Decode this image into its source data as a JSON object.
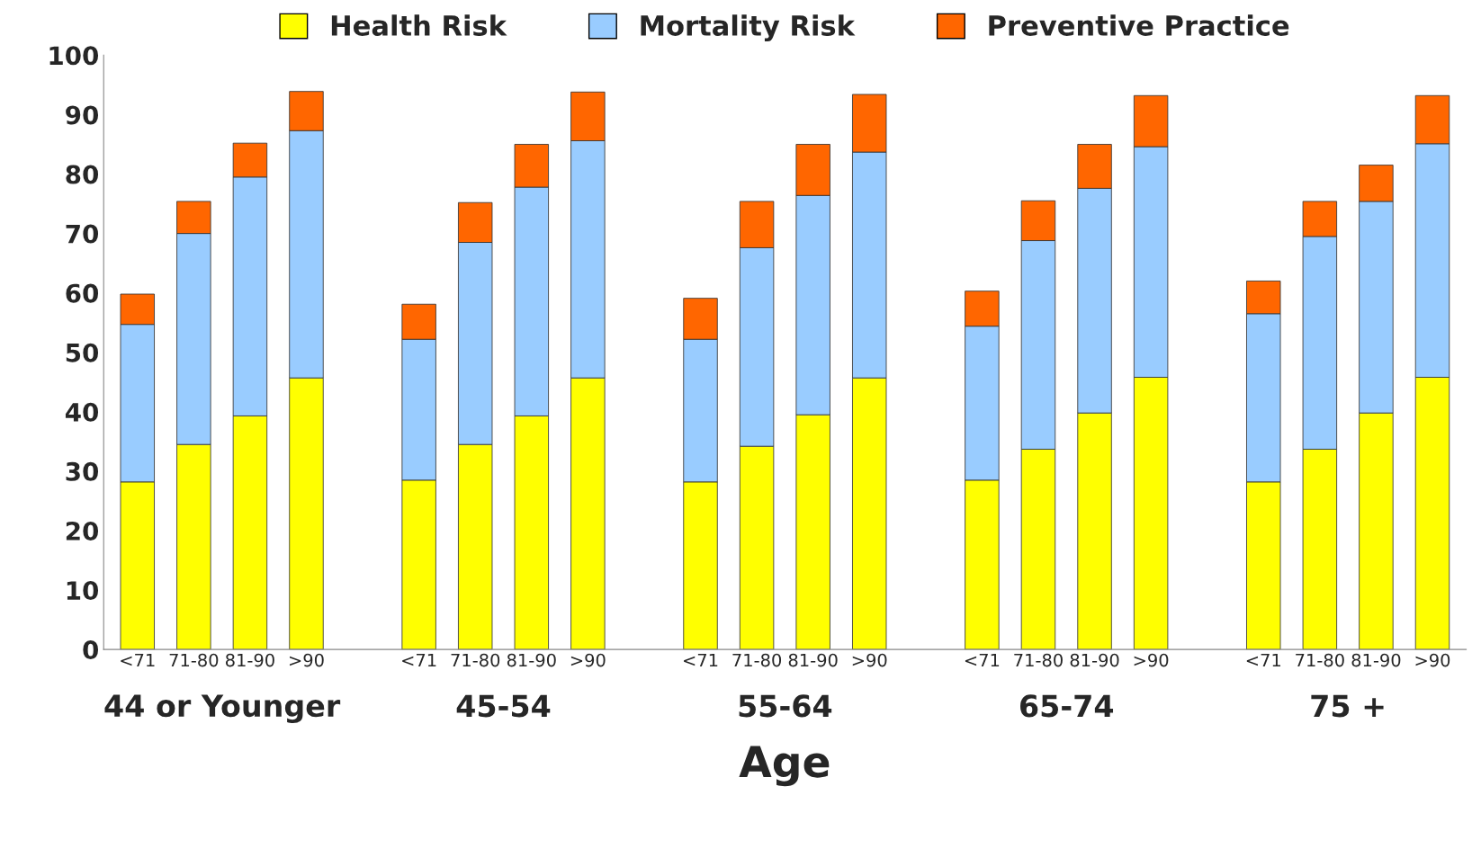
{
  "chart_data": {
    "type": "bar",
    "stacked": true,
    "xlabel": "Age",
    "categories": [
      "<71",
      "71-80",
      "81-90",
      ">90",
      null,
      "<71",
      "71-80",
      "81-90",
      ">90",
      null,
      "<71",
      "71-80",
      "81-90",
      ">90",
      null,
      "<71",
      "71-80",
      "81-90",
      ">90",
      null,
      "<71",
      "71-80",
      "81-90",
      ">90"
    ],
    "series": [
      {
        "name": "Health Risk",
        "color": "#ffff00",
        "values": [
          28.2,
          34.5,
          39.3,
          45.7,
          null,
          28.5,
          34.5,
          39.3,
          45.7,
          null,
          28.2,
          34.2,
          39.5,
          45.7,
          null,
          28.5,
          33.7,
          39.8,
          45.8,
          null,
          28.2,
          33.7,
          39.8,
          45.8
        ]
      },
      {
        "name": "Mortality Risk",
        "color": "#99ccff",
        "values": [
          26.5,
          35.5,
          40.2,
          41.6,
          null,
          23.7,
          34.0,
          38.5,
          39.9,
          null,
          24.0,
          33.4,
          36.9,
          38.0,
          null,
          25.9,
          35.1,
          37.8,
          38.8,
          null,
          28.3,
          35.8,
          35.6,
          39.3
        ]
      },
      {
        "name": "Preventive Practice",
        "color": "#ff6600",
        "values": [
          5.1,
          5.4,
          5.7,
          6.6,
          null,
          5.9,
          6.7,
          7.2,
          8.2,
          null,
          6.9,
          7.8,
          8.6,
          9.7,
          null,
          5.9,
          6.7,
          7.4,
          8.6,
          null,
          5.5,
          5.9,
          6.1,
          8.1
        ]
      }
    ],
    "annotations": [
      "44 or Younger",
      "45-54",
      "55-64",
      "65-74",
      "75 +"
    ],
    "ylim": [
      0,
      100
    ],
    "yticks": [
      0,
      10,
      20,
      30,
      40,
      50,
      60,
      70,
      80,
      90,
      100
    ],
    "grid": false,
    "legend": "top"
  }
}
